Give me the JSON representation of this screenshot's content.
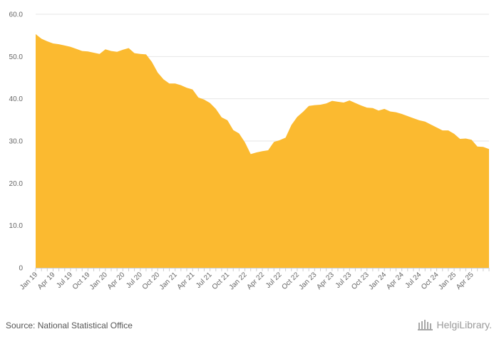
{
  "chart_data": {
    "type": "area",
    "title": "",
    "xlabel": "",
    "ylabel": "",
    "ylim": [
      0,
      60
    ],
    "y_ticks": [
      "0",
      "10.0",
      "20.0",
      "30.0",
      "40.0",
      "50.0",
      "60.0"
    ],
    "x_tick_labels": [
      "Jan 19",
      "Apr 19",
      "Jul 19",
      "Oct 19",
      "Jan 20",
      "Apr 20",
      "Jul 20",
      "Oct 20",
      "Jan 21",
      "Apr 21",
      "Jul 21",
      "Oct 21",
      "Jan 22",
      "Apr 22",
      "Jul 22",
      "Oct 22",
      "Jan 23",
      "Apr 23",
      "Jul 23",
      "Oct 23",
      "Jan 24",
      "Apr 24",
      "Jul 24",
      "Oct 24",
      "Jan 25",
      "Apr 25"
    ],
    "series": [
      {
        "name": "Value",
        "color": "#FBBA30",
        "values": [
          55.3,
          54.2,
          53.6,
          53.1,
          52.9,
          52.6,
          52.3,
          51.8,
          51.3,
          51.2,
          50.9,
          50.6,
          51.7,
          51.3,
          51.1,
          51.6,
          52.0,
          50.8,
          50.6,
          50.5,
          48.7,
          46.2,
          44.6,
          43.6,
          43.6,
          43.2,
          42.6,
          42.2,
          40.3,
          39.8,
          39.0,
          37.6,
          35.6,
          34.9,
          32.6,
          31.8,
          29.7,
          26.9,
          27.3,
          27.6,
          27.8,
          29.8,
          30.2,
          30.8,
          33.8,
          35.7,
          36.9,
          38.3,
          38.5,
          38.6,
          38.9,
          39.5,
          39.3,
          39.1,
          39.6,
          39.0,
          38.4,
          37.9,
          37.8,
          37.2,
          37.6,
          37.0,
          36.8,
          36.4,
          35.9,
          35.4,
          34.9,
          34.6,
          33.9,
          33.2,
          32.5,
          32.5,
          31.7,
          30.5,
          30.6,
          30.3,
          28.7,
          28.6,
          28.1
        ]
      }
    ]
  },
  "footer": {
    "source": "Source: National Statistical Office",
    "brand": "HelgiLibrary."
  }
}
